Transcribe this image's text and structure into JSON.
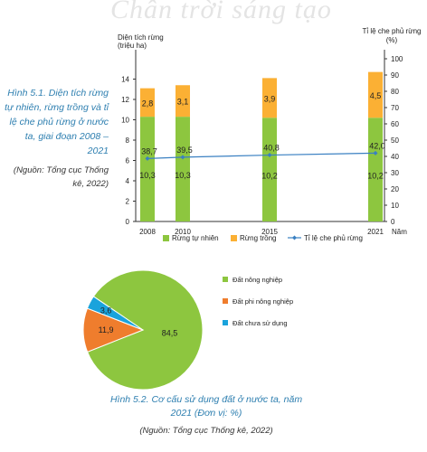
{
  "watermark": "Chân trời sáng tạo",
  "figure1": {
    "caption_title": "Hình 5.1. Diện tích rừng tự nhiên, rừng trồng và tỉ lệ che phủ rừng ở nước ta, giai đoạn 2008 – 2021",
    "caption_source": "(Nguồn: Tổng cục Thống kê, 2022)"
  },
  "figure2": {
    "caption_title": "Hình 5.2. Cơ cấu sử dụng đất ở nước ta, năm 2021 (Đơn vị: %)",
    "caption_source": "(Nguồn: Tổng cục Thống kê, 2022)"
  },
  "chart_data": [
    {
      "type": "bar",
      "stacked": true,
      "categories": [
        "2008",
        "2010",
        "2015",
        "2021"
      ],
      "xlabel": "Năm",
      "ylabel": "Diện tích rừng (triệu ha)",
      "ylabel_lines": [
        "Diện tích rừng",
        "(triệu ha)"
      ],
      "ylim": [
        0,
        16
      ],
      "yticks": [
        "0",
        "2",
        "4",
        "6",
        "8",
        "10",
        "12",
        "14"
      ],
      "y2label": "Tỉ lệ che phủ rừng (%)",
      "y2label_lines": [
        "Tỉ lệ che phủ rừng",
        "(%)"
      ],
      "y2lim": [
        0,
        100
      ],
      "y2ticks": [
        "0",
        "10",
        "20",
        "30",
        "40",
        "50",
        "60",
        "70",
        "80",
        "90",
        "100"
      ],
      "series": [
        {
          "name": "Rừng tự nhiên",
          "values": [
            10.3,
            10.3,
            10.2,
            10.2
          ],
          "labels": [
            "10,3",
            "10,3",
            "10,2",
            "10,2"
          ],
          "color": "#8dc63f"
        },
        {
          "name": "Rừng trồng",
          "values": [
            2.8,
            3.1,
            3.9,
            4.5
          ],
          "labels": [
            "2,8",
            "3,1",
            "3,9",
            "4,5"
          ],
          "color": "#fbb034"
        },
        {
          "name": "Tỉ lệ che phủ rừng",
          "type": "line",
          "axis": "right",
          "values": [
            38.7,
            39.5,
            40.8,
            42.0
          ],
          "labels": [
            "38,7",
            "39,5",
            "40,8",
            "42,0"
          ],
          "color": "#3a80c2"
        }
      ],
      "legend_position": "bottom"
    },
    {
      "type": "pie",
      "categories": [
        "Đất nông nghiệp",
        "Đất phi nông nghiệp",
        "Đất chưa sử dụng"
      ],
      "values": [
        84.5,
        11.9,
        3.6
      ],
      "labels": [
        "84,5",
        "11,9",
        "3,6"
      ],
      "colors": [
        "#8dc63f",
        "#ef7d2d",
        "#1aa3dc"
      ],
      "legend_position": "right"
    }
  ]
}
